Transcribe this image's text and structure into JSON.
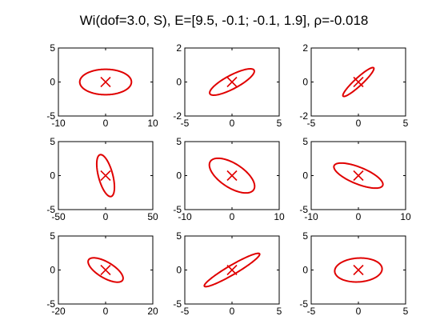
{
  "figure": {
    "title": "Wi(dof=3.0, S), E=[9.5, -0.1; -0.1, 1.9], ρ=-0.018",
    "colors": {
      "curve": "#e00000",
      "marker": "#e00000",
      "axes": "#000000",
      "background": "#ffffff"
    }
  },
  "chart_data": [
    {
      "type": "ellipse",
      "row": 1,
      "col": 1,
      "xlim": [
        -10,
        10
      ],
      "ylim": [
        -5,
        5
      ],
      "xticks": [
        -10,
        0,
        10
      ],
      "yticks": [
        -5,
        0,
        5
      ],
      "xtick_labels": [
        "-10",
        "0",
        "10"
      ],
      "ytick_labels": [
        "-5",
        "0",
        "5"
      ],
      "center": [
        0,
        0
      ],
      "marker": "x",
      "covariance": [
        [
          30,
          0
        ],
        [
          0,
          3.5
        ]
      ]
    },
    {
      "type": "ellipse",
      "row": 1,
      "col": 2,
      "xlim": [
        -5,
        5
      ],
      "ylim": [
        -2,
        2
      ],
      "xticks": [
        -5,
        0,
        5
      ],
      "yticks": [
        -2,
        0,
        2
      ],
      "xtick_labels": [
        "-5",
        "0",
        "5"
      ],
      "ytick_labels": [
        "-2",
        "0",
        "2"
      ],
      "center": [
        0,
        0
      ],
      "marker": "x",
      "covariance": [
        [
          5.6,
          1.5
        ],
        [
          1.5,
          0.6
        ]
      ]
    },
    {
      "type": "ellipse",
      "row": 1,
      "col": 3,
      "xlim": [
        -5,
        5
      ],
      "ylim": [
        -2,
        2
      ],
      "xticks": [
        -5,
        0,
        5
      ],
      "yticks": [
        -2,
        0,
        2
      ],
      "xtick_labels": [
        "-5",
        "0",
        "5"
      ],
      "ytick_labels": [
        "-2",
        "0",
        "2"
      ],
      "center": [
        0,
        0
      ],
      "marker": "x",
      "covariance": [
        [
          2.7,
          1.3
        ],
        [
          1.3,
          0.72
        ]
      ]
    },
    {
      "type": "ellipse",
      "row": 2,
      "col": 1,
      "xlim": [
        -50,
        50
      ],
      "ylim": [
        -5,
        5
      ],
      "xticks": [
        -50,
        0,
        50
      ],
      "yticks": [
        -5,
        0,
        5
      ],
      "xtick_labels": [
        "-50",
        "0",
        "50"
      ],
      "ytick_labels": [
        "-5",
        "0",
        "5"
      ],
      "center": [
        0,
        0
      ],
      "marker": "x",
      "covariance": [
        [
          88,
          -16
        ],
        [
          -16,
          9.5
        ]
      ]
    },
    {
      "type": "ellipse",
      "row": 2,
      "col": 2,
      "xlim": [
        -10,
        10
      ],
      "ylim": [
        -5,
        5
      ],
      "xticks": [
        -10,
        0,
        10
      ],
      "yticks": [
        -5,
        0,
        5
      ],
      "xtick_labels": [
        "-10",
        "0",
        "10"
      ],
      "ytick_labels": [
        "-5",
        "0",
        "5"
      ],
      "center": [
        0,
        0
      ],
      "marker": "x",
      "covariance": [
        [
          23,
          -7.5
        ],
        [
          -7.5,
          6.5
        ]
      ]
    },
    {
      "type": "ellipse",
      "row": 2,
      "col": 3,
      "xlim": [
        -10,
        10
      ],
      "ylim": [
        -5,
        5
      ],
      "xticks": [
        -10,
        0,
        10
      ],
      "yticks": [
        -5,
        0,
        5
      ],
      "xtick_labels": [
        "-10",
        "0",
        "10"
      ],
      "ytick_labels": [
        "-5",
        "0",
        "5"
      ],
      "center": [
        0,
        0
      ],
      "marker": "x",
      "covariance": [
        [
          27,
          -6.7
        ],
        [
          -6.7,
          3.4
        ]
      ]
    },
    {
      "type": "ellipse",
      "row": 3,
      "col": 1,
      "xlim": [
        -20,
        20
      ],
      "ylim": [
        -5,
        5
      ],
      "xticks": [
        -20,
        0,
        20
      ],
      "yticks": [
        -5,
        0,
        5
      ],
      "xtick_labels": [
        "-20",
        "0",
        "20"
      ],
      "ytick_labels": [
        "-5",
        "0",
        "5"
      ],
      "center": [
        0,
        0
      ],
      "marker": "x",
      "covariance": [
        [
          55,
          -9
        ],
        [
          -9,
          3.2
        ]
      ]
    },
    {
      "type": "ellipse",
      "row": 3,
      "col": 2,
      "xlim": [
        -5,
        5
      ],
      "ylim": [
        -5,
        5
      ],
      "xticks": [
        -5,
        0,
        5
      ],
      "yticks": [
        -5,
        0,
        5
      ],
      "xtick_labels": [
        "-5",
        "0",
        "5"
      ],
      "ytick_labels": [
        "-5",
        "0",
        "5"
      ],
      "center": [
        0,
        0
      ],
      "marker": "x",
      "covariance": [
        [
          8.6,
          6.8
        ],
        [
          6.8,
          6.0
        ]
      ]
    },
    {
      "type": "ellipse",
      "row": 3,
      "col": 3,
      "xlim": [
        -5,
        5
      ],
      "ylim": [
        -5,
        5
      ],
      "xticks": [
        -5,
        0,
        5
      ],
      "yticks": [
        -5,
        0,
        5
      ],
      "xtick_labels": [
        "-5",
        "0",
        "5"
      ],
      "ytick_labels": [
        "-5",
        "0",
        "5"
      ],
      "center": [
        0,
        0
      ],
      "marker": "x",
      "covariance": [
        [
          6.3,
          0.4
        ],
        [
          0.4,
          3.1
        ]
      ]
    }
  ]
}
